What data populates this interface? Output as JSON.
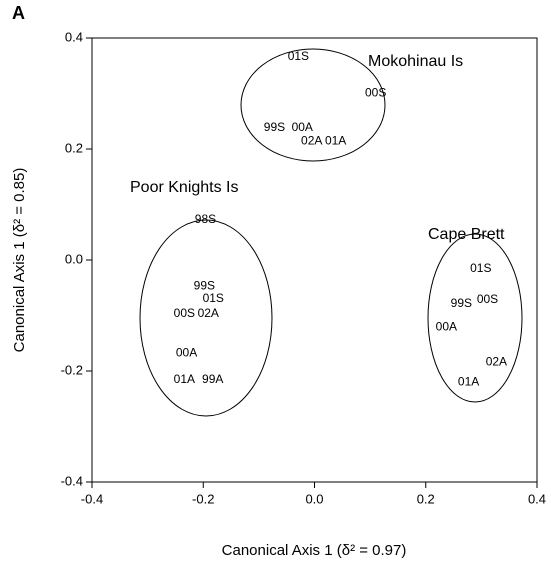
{
  "chart_data": {
    "type": "scatter",
    "panel_label": "A",
    "xlabel": "Canonical Axis 1 (δ² = 0.97)",
    "ylabel": "Canonical Axis 1 (δ² = 0.85)",
    "annotations": [
      "Mokohinau Is",
      "Poor Knights Is",
      "Cape Brett"
    ],
    "labels": [
      "01S",
      "00S",
      "99S",
      "00A",
      "02A",
      "01A",
      "98S",
      "99S",
      "01S",
      "00S",
      "02A",
      "00A",
      "01A",
      "99A",
      "01S",
      "99S",
      "00S",
      "00A",
      "02A",
      "01A"
    ],
    "x": [
      -0.029,
      0.11,
      -0.072,
      -0.022,
      -0.005,
      0.038,
      -0.196,
      -0.198,
      -0.182,
      -0.234,
      -0.191,
      -0.23,
      -0.234,
      -0.183,
      0.299,
      0.264,
      0.311,
      0.237,
      0.327,
      0.277
    ],
    "y": [
      0.366,
      0.3,
      0.238,
      0.238,
      0.214,
      0.214,
      0.072,
      -0.047,
      -0.07,
      -0.097,
      -0.097,
      -0.168,
      -0.216,
      -0.216,
      -0.016,
      -0.079,
      -0.072,
      -0.121,
      -0.184,
      -0.22
    ],
    "xlim": [
      -0.4,
      0.4
    ],
    "ylim": [
      -0.4,
      0.4
    ],
    "xticks": [
      -0.4,
      -0.2,
      {
        "value": 0,
        "label": "0.0"
      },
      0.2,
      0.4
    ],
    "yticks": [
      -0.4,
      -0.2,
      {
        "value": 0,
        "label": "0.0"
      },
      0.2,
      0.4
    ]
  }
}
